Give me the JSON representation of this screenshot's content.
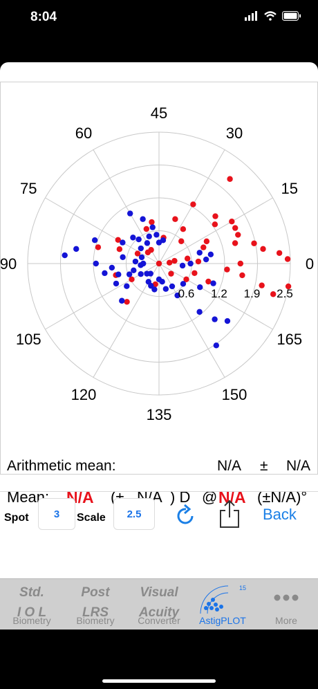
{
  "status": {
    "time": "8:04"
  },
  "plot": {
    "angle_labels": [
      "45",
      "30",
      "15",
      "0",
      "165",
      "150",
      "135",
      "120",
      "105",
      "90",
      "75",
      "60"
    ],
    "radius_labels": [
      "0.6",
      "1.2",
      "1.9",
      "2.5"
    ],
    "arithmetic_label": "Arithmetic mean:",
    "arith_value": "N/A",
    "arith_pm": "±",
    "arith_sd": "N/A",
    "colors": {
      "red": "#e8121b",
      "blue": "#1414d6"
    },
    "red_points": [
      [
        0,
        0
      ],
      [
        5,
        0.2
      ],
      [
        10,
        0.3
      ],
      [
        20,
        0.9
      ],
      [
        25,
        1.0
      ],
      [
        35,
        1.3
      ],
      [
        30,
        1.6
      ],
      [
        40,
        1.4
      ],
      [
        50,
        2.1
      ],
      [
        25,
        1.6
      ],
      [
        20,
        1.6
      ],
      [
        15,
        1.5
      ],
      [
        12,
        1.85
      ],
      [
        8,
        2.0
      ],
      [
        5,
        2.3
      ],
      [
        2,
        2.45
      ],
      [
        0,
        1.55
      ],
      [
        -5,
        1.3
      ],
      [
        -8,
        1.6
      ],
      [
        -12,
        2.0
      ],
      [
        -15,
        2.25
      ],
      [
        -10,
        2.5
      ],
      [
        -20,
        1.0
      ],
      [
        -15,
        0.7
      ],
      [
        3,
        0.75
      ],
      [
        10,
        0.55
      ],
      [
        60,
        1.3
      ],
      [
        70,
        0.9
      ],
      [
        100,
        0.8
      ],
      [
        80,
        0.5
      ],
      [
        110,
        0.7
      ],
      [
        150,
        0.9
      ],
      [
        160,
        0.8
      ],
      [
        165,
        1.2
      ],
      [
        135,
        0.3
      ],
      [
        155,
        0.45
      ],
      [
        120,
        0.3
      ],
      [
        -40,
        0.3
      ],
      [
        -30,
        0.6
      ],
      [
        45,
        0.6
      ],
      [
        55,
        0.8
      ],
      [
        -130,
        0.95
      ],
      [
        -100,
        0.4
      ],
      [
        -150,
        0.6
      ],
      [
        -165,
        0.85
      ]
    ],
    "blue_points": [
      [
        90,
        0.4
      ],
      [
        95,
        0.55
      ],
      [
        80,
        0.45
      ],
      [
        100,
        0.7
      ],
      [
        110,
        0.9
      ],
      [
        120,
        1.1
      ],
      [
        135,
        0.7
      ],
      [
        150,
        0.8
      ],
      [
        160,
        1.3
      ],
      [
        170,
        1.6
      ],
      [
        175,
        1.8
      ],
      [
        180,
        1.2
      ],
      [
        185,
        0.9
      ],
      [
        190,
        1.05
      ],
      [
        195,
        0.8
      ],
      [
        200,
        0.6
      ],
      [
        210,
        0.4
      ],
      [
        220,
        0.3
      ],
      [
        230,
        0.25
      ],
      [
        240,
        0.4
      ],
      [
        250,
        0.45
      ],
      [
        260,
        0.5
      ],
      [
        270,
        0.3
      ],
      [
        280,
        0.35
      ],
      [
        300,
        0.5
      ],
      [
        320,
        0.6
      ],
      [
        330,
        0.9
      ],
      [
        340,
        1.1
      ],
      [
        -40,
        1.7
      ],
      [
        -45,
        1.5
      ],
      [
        -50,
        1.2
      ],
      [
        -55,
        1.9
      ],
      [
        -60,
        0.7
      ],
      [
        -75,
        0.5
      ],
      [
        15,
        0.8
      ],
      [
        10,
        1.0
      ],
      [
        5,
        0.9
      ],
      [
        0,
        0.6
      ],
      [
        -5,
        0.45
      ],
      [
        170,
        0.7
      ],
      [
        175,
        0.45
      ],
      [
        180,
        0.3
      ],
      [
        185,
        0.35
      ],
      [
        195,
        0.5
      ],
      [
        205,
        0.9
      ],
      [
        215,
        0.75
      ],
      [
        225,
        1.0
      ],
      [
        160,
        0.35
      ],
      [
        140,
        0.45
      ],
      [
        120,
        0.45
      ],
      [
        110,
        0.55
      ],
      [
        130,
        0.6
      ]
    ]
  },
  "mean": {
    "label": "Mean:",
    "value": "N/A",
    "pm_open": "(±",
    "sd": "N/A",
    "close_unit": ") D",
    "at": "@",
    "axis_value": "N/A",
    "axis_sd": "(±N/A)°"
  },
  "controls": {
    "spot_label": "Spot",
    "spot_value": "3",
    "scale_label": "Scale",
    "scale_value": "2.5",
    "back_label": "Back"
  },
  "tabs": [
    {
      "big1": "Std.",
      "big2": "I O L",
      "small": "Biometry"
    },
    {
      "big1": "Post",
      "big2": "LRS",
      "small": "Biometry"
    },
    {
      "big1": "Visual",
      "big2": "Acuity",
      "small": "Converter"
    },
    {
      "small": "AstigPLOT",
      "badge": "15"
    },
    {
      "small": "More"
    }
  ]
}
